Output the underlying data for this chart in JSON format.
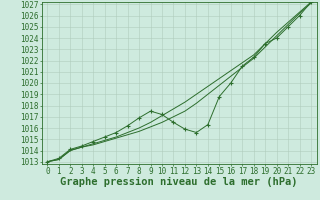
{
  "title": "Graphe pression niveau de la mer (hPa)",
  "background_color": "#ceeade",
  "grid_color": "#b0ccbc",
  "line_color": "#2d6e2d",
  "xlim": [
    0,
    23
  ],
  "ylim": [
    1013,
    1027
  ],
  "xlabel_ticks": [
    0,
    1,
    2,
    3,
    4,
    5,
    6,
    7,
    8,
    9,
    10,
    11,
    12,
    13,
    14,
    15,
    16,
    17,
    18,
    19,
    20,
    21,
    22,
    23
  ],
  "ylabel_ticks": [
    1013,
    1014,
    1015,
    1016,
    1017,
    1018,
    1019,
    1020,
    1021,
    1022,
    1023,
    1024,
    1025,
    1026,
    1027
  ],
  "series_smooth1": [
    1013.0,
    1013.2,
    1014.0,
    1014.3,
    1014.5,
    1014.8,
    1015.1,
    1015.4,
    1015.7,
    1016.1,
    1016.5,
    1017.0,
    1017.5,
    1018.2,
    1019.0,
    1019.8,
    1020.6,
    1021.4,
    1022.2,
    1023.2,
    1024.2,
    1025.2,
    1026.2,
    1027.1
  ],
  "series_smooth2": [
    1013.0,
    1013.2,
    1014.0,
    1014.3,
    1014.6,
    1014.9,
    1015.2,
    1015.6,
    1016.0,
    1016.5,
    1017.1,
    1017.7,
    1018.3,
    1019.0,
    1019.7,
    1020.4,
    1021.1,
    1021.8,
    1022.5,
    1023.5,
    1024.5,
    1025.4,
    1026.3,
    1027.2
  ],
  "series_marker": [
    1013.0,
    1013.3,
    1014.1,
    1014.4,
    1014.8,
    1015.2,
    1015.6,
    1016.2,
    1016.9,
    1017.5,
    1017.2,
    1016.5,
    1015.9,
    1015.6,
    1016.3,
    1018.8,
    1020.0,
    1021.5,
    1022.3,
    1023.5,
    1024.0,
    1025.0,
    1026.0,
    1027.2
  ],
  "fontsize_label": 6.5,
  "fontsize_tick": 5.5,
  "fontsize_xlabel": 7.5
}
